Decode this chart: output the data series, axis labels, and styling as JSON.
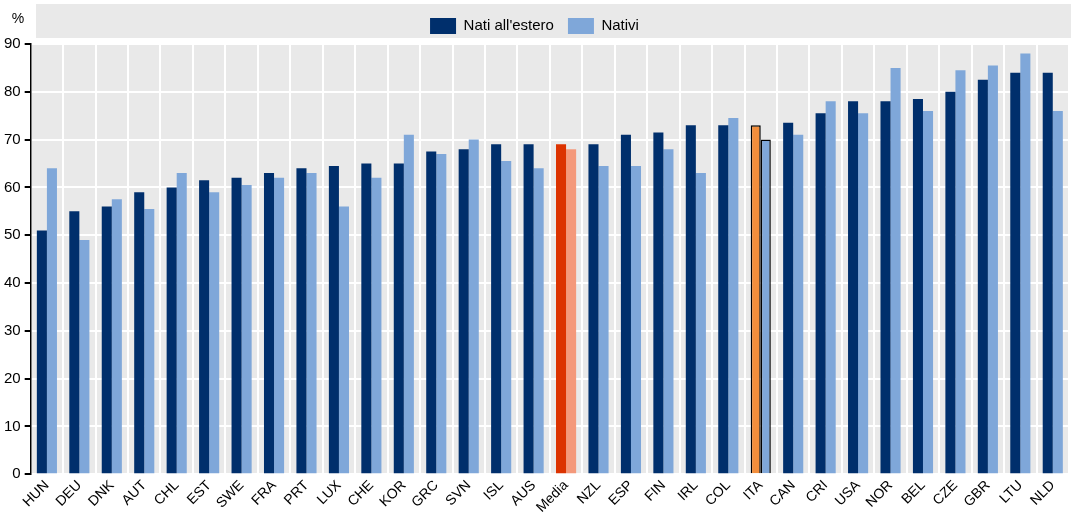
{
  "chart_data": {
    "type": "bar",
    "ylabel": "%",
    "categories": [
      "HUN",
      "DEU",
      "DNK",
      "AUT",
      "CHL",
      "EST",
      "SWE",
      "FRA",
      "PRT",
      "LUX",
      "CHE",
      "KOR",
      "GRC",
      "SVN",
      "ISL",
      "AUS",
      "Media",
      "NZL",
      "ESP",
      "FIN",
      "IRL",
      "COL",
      "ITA",
      "CAN",
      "CRI",
      "USA",
      "NOR",
      "BEL",
      "CZE",
      "GBR",
      "LTU",
      "NLD"
    ],
    "series": [
      {
        "name": "Nati all'estero",
        "color": "#002f6c",
        "colors": [
          "#002f6c",
          "#002f6c",
          "#002f6c",
          "#002f6c",
          "#002f6c",
          "#002f6c",
          "#002f6c",
          "#002f6c",
          "#002f6c",
          "#002f6c",
          "#002f6c",
          "#002f6c",
          "#002f6c",
          "#002f6c",
          "#002f6c",
          "#002f6c",
          "#dc3300",
          "#002f6c",
          "#002f6c",
          "#002f6c",
          "#002f6c",
          "#002f6c",
          "#f28e3c",
          "#002f6c",
          "#002f6c",
          "#002f6c",
          "#002f6c",
          "#002f6c",
          "#002f6c",
          "#002f6c",
          "#002f6c",
          "#002f6c"
        ],
        "values": [
          51,
          55,
          56,
          59,
          60,
          61.5,
          62,
          63,
          64,
          64.5,
          65,
          65,
          67.5,
          68,
          69,
          69,
          69,
          69,
          71,
          71.5,
          73,
          73,
          73,
          73.5,
          75.5,
          78,
          78,
          78.5,
          80,
          82.5,
          84,
          84
        ]
      },
      {
        "name": "Nativi",
        "color": "#7fa7d9",
        "colors": [
          "#7fa7d9",
          "#7fa7d9",
          "#7fa7d9",
          "#7fa7d9",
          "#7fa7d9",
          "#7fa7d9",
          "#7fa7d9",
          "#7fa7d9",
          "#7fa7d9",
          "#7fa7d9",
          "#7fa7d9",
          "#7fa7d9",
          "#7fa7d9",
          "#7fa7d9",
          "#7fa7d9",
          "#7fa7d9",
          "#f4997b",
          "#7fa7d9",
          "#7fa7d9",
          "#7fa7d9",
          "#7fa7d9",
          "#7fa7d9",
          "#7fa7d9",
          "#7fa7d9",
          "#7fa7d9",
          "#7fa7d9",
          "#7fa7d9",
          "#7fa7d9",
          "#7fa7d9",
          "#7fa7d9",
          "#7fa7d9",
          "#7fa7d9"
        ],
        "values": [
          64,
          49,
          57.5,
          55.5,
          63,
          59,
          60.5,
          62,
          63,
          56,
          62,
          71,
          67,
          70,
          65.5,
          64,
          68,
          64.5,
          64.5,
          68,
          63,
          74.5,
          70,
          71,
          78,
          75.5,
          85,
          76,
          84.5,
          85.5,
          88,
          76
        ]
      }
    ],
    "ylim": [
      0,
      90
    ],
    "yticks": [
      0,
      10,
      20,
      30,
      40,
      50,
      60,
      70,
      80,
      90
    ],
    "grid": true,
    "legend": "top"
  }
}
